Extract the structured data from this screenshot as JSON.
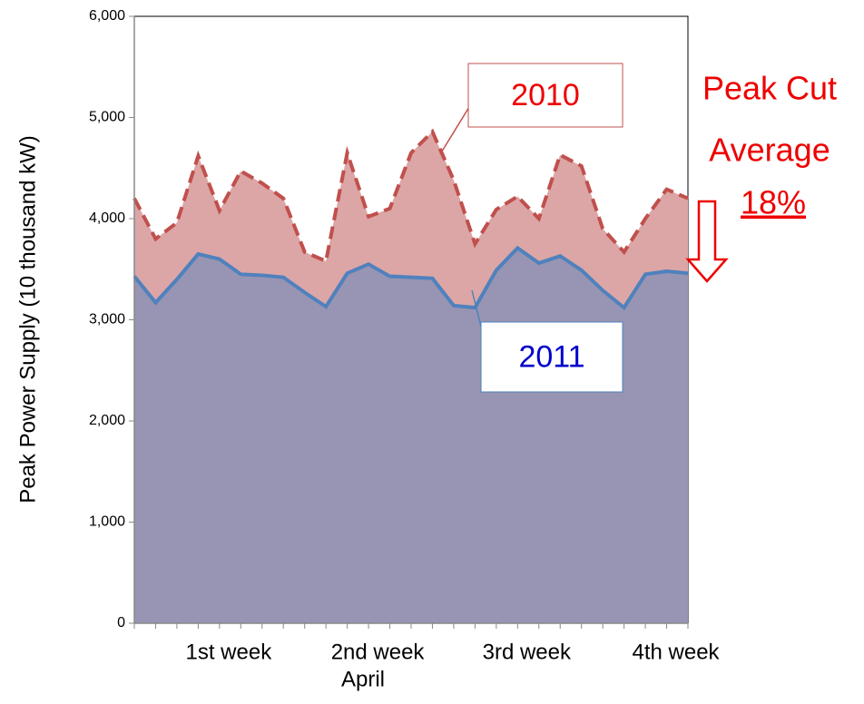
{
  "chart_data": {
    "type": "area",
    "x_label": "April",
    "y_label": "Peak Power Supply (10 thousand kW)",
    "categories": [
      null,
      null,
      null,
      null,
      "1st week",
      null,
      null,
      null,
      null,
      null,
      null,
      "2nd week",
      null,
      null,
      null,
      null,
      null,
      null,
      "3rd week",
      null,
      null,
      null,
      null,
      null,
      null,
      "4th week",
      null
    ],
    "series": [
      {
        "name": "2010",
        "color": "#c0504d",
        "fill": "#dca6a6",
        "dashed": true,
        "values": [
          4200,
          3800,
          3960,
          4620,
          4080,
          4470,
          4350,
          4200,
          3670,
          3580,
          4650,
          4020,
          4100,
          4650,
          4860,
          4380,
          3750,
          4090,
          4220,
          4000,
          4630,
          4520,
          3900,
          3670,
          4000,
          4290,
          4200
        ]
      },
      {
        "name": "2011",
        "color": "#4f81bd",
        "fill": "#9795b3",
        "dashed": false,
        "values": [
          3430,
          3170,
          3400,
          3650,
          3600,
          3450,
          3440,
          3420,
          3270,
          3130,
          3460,
          3550,
          3430,
          3420,
          3410,
          3140,
          3120,
          3490,
          3710,
          3560,
          3630,
          3490,
          3290,
          3120,
          3450,
          3480,
          3460
        ]
      }
    ],
    "ylim": [
      0,
      6000
    ],
    "yticks": [
      0,
      {
        "value": 1000,
        "label": "1,000"
      },
      {
        "value": 2000,
        "label": "2,000"
      },
      {
        "value": 3000,
        "label": "3,000"
      },
      {
        "value": 4000,
        "label": "4,000"
      },
      {
        "value": 5000,
        "label": "5,000"
      },
      {
        "value": 6000,
        "label": "6,000"
      }
    ],
    "annotations": [
      "Peak Cut",
      "Average",
      "18%"
    ]
  }
}
